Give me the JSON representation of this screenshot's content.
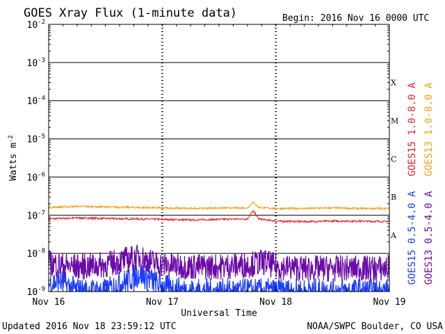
{
  "header": {
    "title": "GOES Xray Flux (1-minute data)",
    "begin": "Begin:  2016 Nov 16 0000 UTC"
  },
  "footer": {
    "updated": "Updated 2016 Nov 18 23:59:12 UTC",
    "source": "NOAA/SWPC Boulder, CO USA"
  },
  "chart_data": {
    "type": "line",
    "title": "GOES Xray Flux (1-minute data)",
    "xlabel": "Universal Time",
    "ylabel": "Watts m-2",
    "ylabel_base": "Watts m",
    "ylabel_sup": "-2",
    "y_scale": "log",
    "ylim": [
      1e-09,
      0.01
    ],
    "xlim_days": [
      0,
      3
    ],
    "x_tick_labels": [
      "Nov 16",
      "Nov 17",
      "Nov 18",
      "Nov 19"
    ],
    "y_ticks": [
      {
        "base": "10",
        "exp": "-2",
        "value": 0.01
      },
      {
        "base": "10",
        "exp": "-3",
        "value": 0.001
      },
      {
        "base": "10",
        "exp": "-4",
        "value": 0.0001
      },
      {
        "base": "10",
        "exp": "-5",
        "value": 1e-05
      },
      {
        "base": "10",
        "exp": "-6",
        "value": 1e-06
      },
      {
        "base": "10",
        "exp": "-7",
        "value": 1e-07
      },
      {
        "base": "10",
        "exp": "-8",
        "value": 1e-08
      },
      {
        "base": "10",
        "exp": "-9",
        "value": 1e-09
      }
    ],
    "flare_classes": [
      {
        "label": "X",
        "value": 0.0003
      },
      {
        "label": "M",
        "value": 3e-05
      },
      {
        "label": "C",
        "value": 3e-06
      },
      {
        "label": "B",
        "value": 3e-07
      },
      {
        "label": "A",
        "value": 3e-08
      }
    ],
    "grid": true,
    "legend_position": "right",
    "series": [
      {
        "name": "GOES15 1.0-8.0 A",
        "color": "#e8212b",
        "days": [
          0,
          0.25,
          0.5,
          0.75,
          1.0,
          1.25,
          1.5,
          1.75,
          1.8,
          1.85,
          2.0,
          2.25,
          2.5,
          2.75,
          3.0
        ],
        "values": [
          8e-08,
          8.5e-08,
          8.2e-08,
          8e-08,
          7.8e-08,
          7.5e-08,
          7.8e-08,
          8e-08,
          1.3e-07,
          8e-08,
          7e-08,
          6.8e-08,
          7e-08,
          7e-08,
          6.8e-08
        ]
      },
      {
        "name": "GOES13 1.0-8.0 A",
        "color": "#eea21d",
        "days": [
          0,
          0.25,
          0.5,
          0.75,
          1.0,
          1.25,
          1.5,
          1.75,
          1.8,
          1.85,
          2.0,
          2.25,
          2.5,
          2.75,
          3.0
        ],
        "values": [
          1.6e-07,
          1.7e-07,
          1.65e-07,
          1.6e-07,
          1.55e-07,
          1.5e-07,
          1.55e-07,
          1.55e-07,
          2.2e-07,
          1.6e-07,
          1.5e-07,
          1.5e-07,
          1.55e-07,
          1.5e-07,
          1.5e-07
        ]
      },
      {
        "name": "GOES15 0.5-4.0 A",
        "color": "#1a3cff",
        "days": [
          0,
          0.1,
          0.2,
          0.3,
          0.5,
          0.7,
          0.8,
          0.9,
          1.0,
          1.25,
          1.5,
          1.75,
          2.0,
          2.25,
          2.5,
          2.75,
          3.0
        ],
        "values": [
          1.5e-09,
          2e-09,
          1.2e-09,
          1e-09,
          1e-09,
          2e-09,
          3e-09,
          2e-09,
          1.3e-09,
          1e-09,
          1e-09,
          1e-09,
          1e-09,
          1e-09,
          1e-09,
          1e-09,
          1e-09
        ]
      },
      {
        "name": "GOES13 0.5-4.0 A",
        "color": "#6a0aa8",
        "days": [
          0,
          0.1,
          0.2,
          0.3,
          0.5,
          0.7,
          0.8,
          0.9,
          1.0,
          1.25,
          1.5,
          1.75,
          1.9,
          2.0,
          2.25,
          2.5,
          2.75,
          3.0
        ],
        "values": [
          5.5e-09,
          5e-09,
          4.5e-09,
          4.5e-09,
          5e-09,
          7e-09,
          8e-09,
          6e-09,
          5e-09,
          4.5e-09,
          4.5e-09,
          5e-09,
          6e-09,
          4.5e-09,
          4e-09,
          4e-09,
          4e-09,
          4e-09
        ]
      }
    ]
  }
}
